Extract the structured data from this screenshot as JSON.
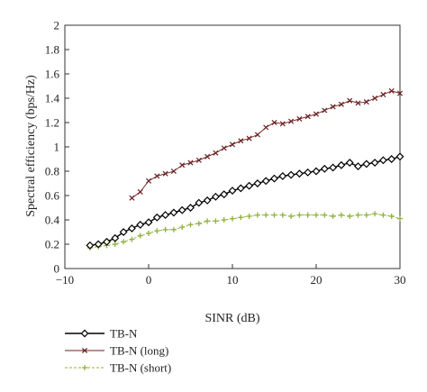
{
  "chart_data": {
    "type": "line",
    "xlabel": "SINR (dB)",
    "ylabel": "Spectral efficiency (bps/Hz)",
    "xlim": [
      -10,
      30
    ],
    "ylim": [
      0,
      2
    ],
    "xticks": [
      -10,
      0,
      10,
      20,
      30
    ],
    "xtick_labels": [
      "−10",
      "0",
      "10",
      "20",
      "30"
    ],
    "yticks": [
      0,
      0.2,
      0.4,
      0.6,
      0.8,
      1,
      1.2,
      1.4,
      1.6,
      1.8,
      2
    ],
    "ytick_labels": [
      "0",
      "0.2",
      "0.4",
      "0.6",
      "0.8",
      "1",
      "1.2",
      "1.4",
      "1.6",
      "1.8",
      "2"
    ],
    "grid": false,
    "legend_position": "bottom-left-outside",
    "series": [
      {
        "name": "TB-N",
        "color": "#000000",
        "marker": "diamond",
        "line_style": "solid",
        "x": [
          -7,
          -6,
          -5,
          -4,
          -3,
          -2,
          -1,
          0,
          1,
          2,
          3,
          4,
          5,
          6,
          7,
          8,
          9,
          10,
          11,
          12,
          13,
          14,
          15,
          16,
          17,
          18,
          19,
          20,
          21,
          22,
          23,
          24,
          25,
          26,
          27,
          28,
          29,
          30
        ],
        "y": [
          0.19,
          0.2,
          0.22,
          0.25,
          0.3,
          0.33,
          0.36,
          0.38,
          0.42,
          0.44,
          0.46,
          0.48,
          0.5,
          0.54,
          0.56,
          0.59,
          0.61,
          0.64,
          0.66,
          0.68,
          0.7,
          0.72,
          0.74,
          0.76,
          0.77,
          0.78,
          0.79,
          0.8,
          0.82,
          0.83,
          0.85,
          0.87,
          0.84,
          0.86,
          0.87,
          0.89,
          0.9,
          0.92
        ]
      },
      {
        "name": "TB-N (long)",
        "color": "#6b1f1f",
        "marker": "x",
        "line_style": "solid",
        "x": [
          -2,
          -1,
          0,
          1,
          2,
          3,
          4,
          5,
          6,
          7,
          8,
          9,
          10,
          11,
          12,
          13,
          14,
          15,
          16,
          17,
          18,
          19,
          20,
          21,
          22,
          23,
          24,
          25,
          26,
          27,
          28,
          29,
          30
        ],
        "y": [
          0.58,
          0.63,
          0.72,
          0.76,
          0.78,
          0.8,
          0.85,
          0.87,
          0.89,
          0.92,
          0.95,
          0.99,
          1.02,
          1.05,
          1.07,
          1.1,
          1.16,
          1.2,
          1.19,
          1.21,
          1.23,
          1.25,
          1.27,
          1.3,
          1.33,
          1.35,
          1.38,
          1.36,
          1.37,
          1.4,
          1.43,
          1.46,
          1.44
        ]
      },
      {
        "name": "TB-N (short)",
        "color": "#8db33a",
        "marker": "plus",
        "line_style": "dashed",
        "x": [
          -7,
          -6,
          -5,
          -4,
          -3,
          -2,
          -1,
          0,
          1,
          2,
          3,
          4,
          5,
          6,
          7,
          8,
          9,
          10,
          11,
          12,
          13,
          14,
          15,
          16,
          17,
          18,
          19,
          20,
          21,
          22,
          23,
          24,
          25,
          26,
          27,
          28,
          29,
          30
        ],
        "y": [
          0.17,
          0.18,
          0.19,
          0.2,
          0.22,
          0.24,
          0.27,
          0.29,
          0.31,
          0.32,
          0.32,
          0.34,
          0.36,
          0.37,
          0.39,
          0.39,
          0.4,
          0.41,
          0.42,
          0.43,
          0.44,
          0.44,
          0.44,
          0.44,
          0.43,
          0.44,
          0.44,
          0.44,
          0.44,
          0.43,
          0.44,
          0.43,
          0.44,
          0.44,
          0.45,
          0.44,
          0.43,
          0.41
        ]
      }
    ]
  }
}
